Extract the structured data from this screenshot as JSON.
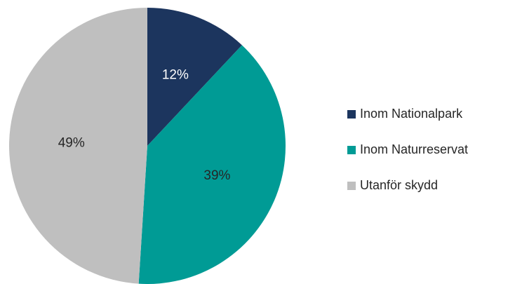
{
  "chart_data": {
    "type": "pie",
    "categories": [
      "Inom Nationalpark",
      "Inom Naturreservat",
      "Utanför skydd"
    ],
    "values": [
      12,
      39,
      49
    ],
    "value_labels": [
      "12%",
      "39%",
      "49%"
    ],
    "colors": [
      "#1c355e",
      "#009b95",
      "#bfbfbf"
    ],
    "legend": "right"
  }
}
